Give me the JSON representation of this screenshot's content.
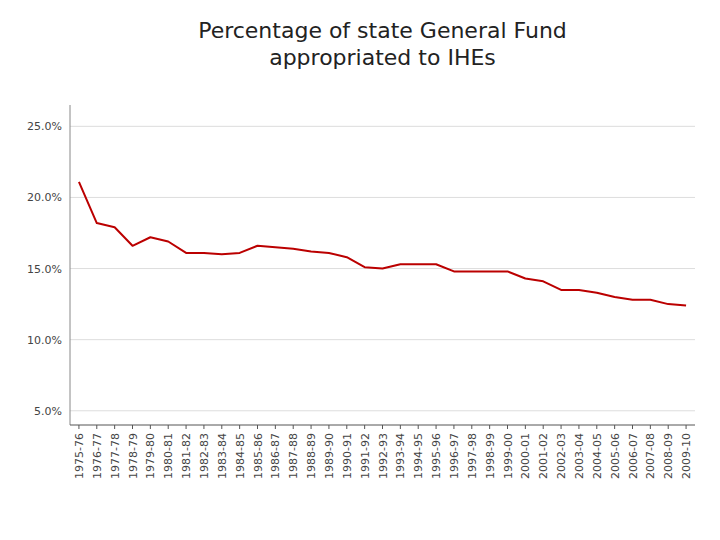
{
  "chart_data": {
    "type": "line",
    "title": "Percentage of state General Fund\nappropriated to IHEs",
    "categories": [
      "1975-76",
      "1976-77",
      "1977-78",
      "1978-79",
      "1979-80",
      "1980-81",
      "1981-82",
      "1982-83",
      "1983-84",
      "1984-85",
      "1985-86",
      "1986-87",
      "1987-88",
      "1988-89",
      "1989-90",
      "1990-91",
      "1991-92",
      "1992-93",
      "1993-94",
      "1994-95",
      "1995-96",
      "1996-97",
      "1997-98",
      "1998-99",
      "1999-00",
      "2000-01",
      "2001-02",
      "2002-03",
      "2003-04",
      "2004-05",
      "2005-06",
      "2006-07",
      "2007-08",
      "2008-09",
      "2009-10"
    ],
    "values": [
      21.1,
      18.2,
      17.9,
      16.6,
      17.2,
      16.9,
      16.1,
      16.1,
      16.0,
      16.1,
      16.6,
      16.5,
      16.4,
      16.2,
      16.1,
      15.8,
      15.1,
      15.0,
      15.3,
      15.3,
      15.3,
      14.8,
      14.8,
      14.8,
      14.8,
      14.3,
      14.1,
      13.5,
      13.5,
      13.3,
      13.0,
      12.8,
      12.8,
      12.5,
      12.4
    ],
    "color": "#bb0000",
    "ylim": [
      4.0,
      26.5
    ],
    "yticks": [
      {
        "value": 5.0,
        "label": "5.0%"
      },
      {
        "value": 10.0,
        "label": "10.0%"
      },
      {
        "value": 15.0,
        "label": "15.0%"
      },
      {
        "value": 20.0,
        "label": "20.0%"
      },
      {
        "value": 25.0,
        "label": "25.0%"
      }
    ],
    "grid": true
  }
}
